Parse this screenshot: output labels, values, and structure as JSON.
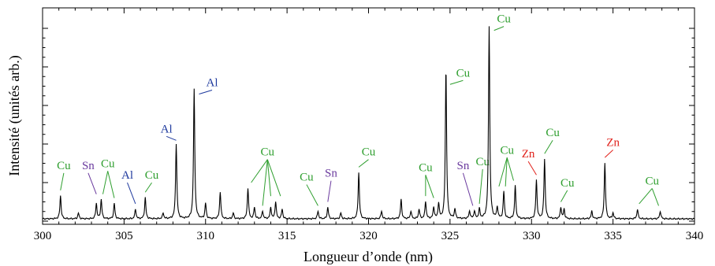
{
  "chart_data": {
    "type": "line",
    "title": "",
    "xlabel": "Longueur d’onde (nm)",
    "ylabel": "Intensité (unités arb.)",
    "xlim": [
      300,
      340
    ],
    "ylim": [
      0,
      1
    ],
    "x_ticks": [
      "300",
      "305",
      "310",
      "315",
      "320",
      "325",
      "330",
      "335",
      "340"
    ],
    "grid": false,
    "colors": {
      "Cu": "#2e9e2e",
      "Al": "#1f3a9e",
      "Sn": "#6a3a9e",
      "Zn": "#e0201a",
      "spectrum": "#000000"
    },
    "peaks": [
      {
        "x": 301.1,
        "y": 0.12
      },
      {
        "x": 302.2,
        "y": 0.03
      },
      {
        "x": 303.3,
        "y": 0.08
      },
      {
        "x": 303.6,
        "y": 0.1
      },
      {
        "x": 304.4,
        "y": 0.08
      },
      {
        "x": 305.7,
        "y": 0.05
      },
      {
        "x": 306.3,
        "y": 0.11
      },
      {
        "x": 307.4,
        "y": 0.03
      },
      {
        "x": 308.2,
        "y": 0.39
      },
      {
        "x": 309.3,
        "y": 0.67
      },
      {
        "x": 310.0,
        "y": 0.08
      },
      {
        "x": 310.9,
        "y": 0.14
      },
      {
        "x": 311.7,
        "y": 0.03
      },
      {
        "x": 312.6,
        "y": 0.16
      },
      {
        "x": 313.0,
        "y": 0.06
      },
      {
        "x": 313.5,
        "y": 0.04
      },
      {
        "x": 314.0,
        "y": 0.06
      },
      {
        "x": 314.3,
        "y": 0.09
      },
      {
        "x": 314.7,
        "y": 0.05
      },
      {
        "x": 316.9,
        "y": 0.04
      },
      {
        "x": 317.5,
        "y": 0.06
      },
      {
        "x": 318.3,
        "y": 0.03
      },
      {
        "x": 319.4,
        "y": 0.24
      },
      {
        "x": 320.8,
        "y": 0.04
      },
      {
        "x": 322.0,
        "y": 0.1
      },
      {
        "x": 322.6,
        "y": 0.04
      },
      {
        "x": 323.1,
        "y": 0.05
      },
      {
        "x": 323.5,
        "y": 0.09
      },
      {
        "x": 324.0,
        "y": 0.06
      },
      {
        "x": 324.3,
        "y": 0.08
      },
      {
        "x": 324.75,
        "y": 0.78
      },
      {
        "x": 325.3,
        "y": 0.05
      },
      {
        "x": 326.2,
        "y": 0.04
      },
      {
        "x": 326.5,
        "y": 0.04
      },
      {
        "x": 326.8,
        "y": 0.05
      },
      {
        "x": 327.4,
        "y": 1.0
      },
      {
        "x": 327.9,
        "y": 0.06
      },
      {
        "x": 328.3,
        "y": 0.14
      },
      {
        "x": 329.0,
        "y": 0.17
      },
      {
        "x": 330.3,
        "y": 0.2
      },
      {
        "x": 330.8,
        "y": 0.31
      },
      {
        "x": 331.8,
        "y": 0.06
      },
      {
        "x": 332.0,
        "y": 0.05
      },
      {
        "x": 333.7,
        "y": 0.04
      },
      {
        "x": 334.5,
        "y": 0.29
      },
      {
        "x": 335.0,
        "y": 0.03
      },
      {
        "x": 336.5,
        "y": 0.05
      },
      {
        "x": 337.9,
        "y": 0.04
      }
    ],
    "annotations": [
      {
        "text": "Cu",
        "element": "Cu",
        "x": 301.3,
        "y": 0.27,
        "targets": [
          301.1
        ]
      },
      {
        "text": "Sn",
        "element": "Sn",
        "x": 302.8,
        "y": 0.27,
        "targets": [
          303.3
        ]
      },
      {
        "text": "Cu",
        "element": "Cu",
        "x": 304.0,
        "y": 0.28,
        "targets": [
          303.7,
          304.4
        ]
      },
      {
        "text": "Al",
        "element": "Al",
        "x": 305.2,
        "y": 0.22,
        "targets": [
          305.7
        ]
      },
      {
        "text": "Cu",
        "element": "Cu",
        "x": 306.7,
        "y": 0.22,
        "targets": [
          306.3
        ]
      },
      {
        "text": "Al",
        "element": "Al",
        "x": 307.6,
        "y": 0.46,
        "targets": [
          308.2
        ]
      },
      {
        "text": "Al",
        "element": "Al",
        "x": 310.4,
        "y": 0.7,
        "targets": [
          309.6
        ]
      },
      {
        "text": "Cu",
        "element": "Cu",
        "x": 313.8,
        "y": 0.34,
        "targets": [
          312.8,
          313.5,
          314.0,
          314.6
        ]
      },
      {
        "text": "Cu",
        "element": "Cu",
        "x": 316.2,
        "y": 0.21,
        "targets": [
          316.9
        ]
      },
      {
        "text": "Sn",
        "element": "Sn",
        "x": 317.7,
        "y": 0.23,
        "targets": [
          317.5
        ]
      },
      {
        "text": "Cu",
        "element": "Cu",
        "x": 320.0,
        "y": 0.34,
        "targets": [
          319.4
        ]
      },
      {
        "text": "Cu",
        "element": "Cu",
        "x": 323.5,
        "y": 0.26,
        "targets": [
          323.5,
          324.0
        ]
      },
      {
        "text": "Cu",
        "element": "Cu",
        "x": 325.8,
        "y": 0.75,
        "targets": [
          325.0
        ]
      },
      {
        "text": "Sn",
        "element": "Sn",
        "x": 325.8,
        "y": 0.27,
        "targets": [
          326.4
        ]
      },
      {
        "text": "Cu",
        "element": "Cu",
        "x": 327.0,
        "y": 0.29,
        "targets": [
          326.8
        ]
      },
      {
        "text": "Cu",
        "element": "Cu",
        "x": 328.3,
        "y": 1.03,
        "targets": [
          327.7
        ]
      },
      {
        "text": "Cu",
        "element": "Cu",
        "x": 328.5,
        "y": 0.35,
        "targets": [
          328.0,
          328.4,
          328.9
        ]
      },
      {
        "text": "Zn",
        "element": "Zn",
        "x": 329.8,
        "y": 0.33,
        "targets": [
          330.3
        ]
      },
      {
        "text": "Cu",
        "element": "Cu",
        "x": 331.3,
        "y": 0.44,
        "targets": [
          330.8
        ]
      },
      {
        "text": "Cu",
        "element": "Cu",
        "x": 332.2,
        "y": 0.18,
        "targets": [
          331.8
        ]
      },
      {
        "text": "Zn",
        "element": "Zn",
        "x": 335.0,
        "y": 0.39,
        "targets": [
          334.5
        ]
      },
      {
        "text": "Cu",
        "element": "Cu",
        "x": 337.4,
        "y": 0.19,
        "targets": [
          336.6,
          337.8
        ]
      }
    ]
  }
}
